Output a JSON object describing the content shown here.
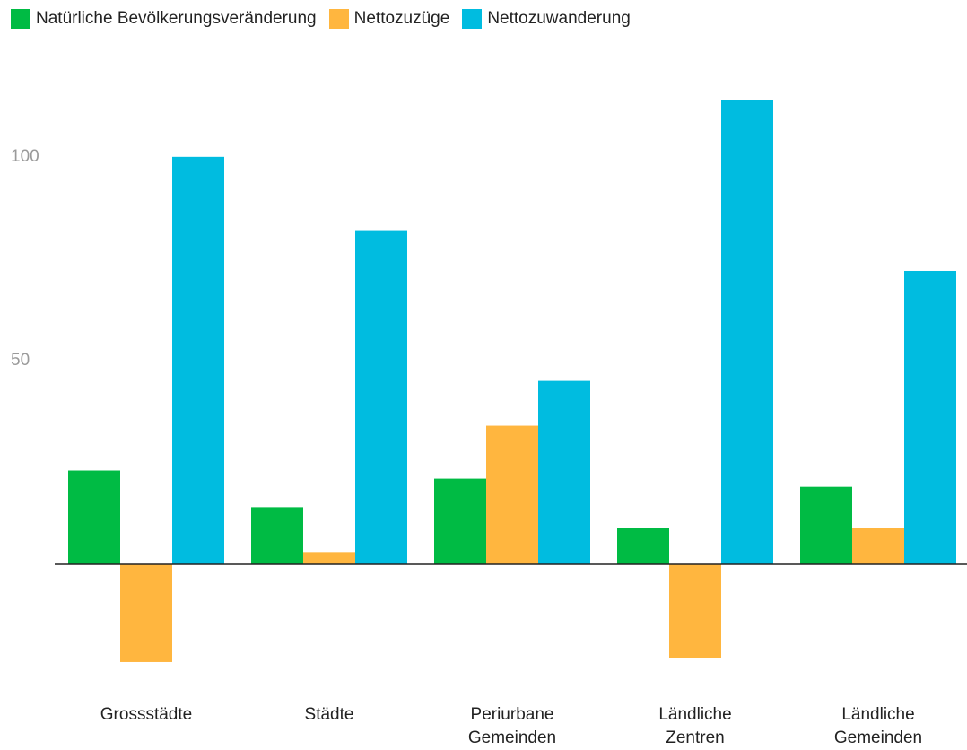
{
  "chart_data": {
    "type": "bar",
    "categories": [
      "Grossstädte",
      "Städte",
      "Periurbane Gemeinden",
      "Ländliche Zentren",
      "Ländliche Gemeinden"
    ],
    "series": [
      {
        "name": "Natürliche Bevölkerungsveränderung",
        "color": "#00bb44",
        "values": [
          23,
          14,
          21,
          9,
          19
        ]
      },
      {
        "name": "Nettozuzüge",
        "color": "#ffb63f",
        "values": [
          -24,
          3,
          34,
          -23,
          9
        ]
      },
      {
        "name": "Nettozuwanderung",
        "color": "#00bce0",
        "values": [
          100,
          82,
          45,
          114,
          72
        ]
      }
    ],
    "ylim": [
      -25,
      120
    ],
    "yticks": [
      50,
      100
    ],
    "legend": "top-left"
  }
}
